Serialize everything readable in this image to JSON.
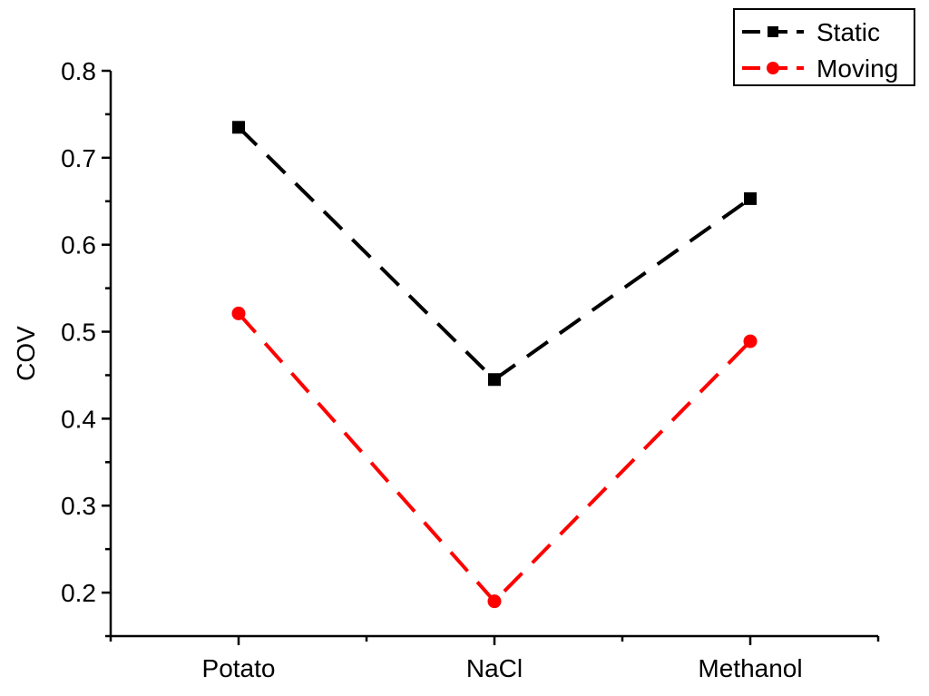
{
  "chart_data": {
    "type": "line",
    "categories": [
      "Potato",
      "NaCl",
      "Methanol"
    ],
    "series": [
      {
        "name": "Static",
        "values": [
          0.735,
          0.445,
          0.653
        ],
        "color": "#000000",
        "marker": "square",
        "line_style": "dashed"
      },
      {
        "name": "Moving",
        "values": [
          0.521,
          0.19,
          0.489
        ],
        "color": "#ff0000",
        "marker": "circle",
        "line_style": "dashed"
      }
    ],
    "title": "",
    "xlabel": "",
    "ylabel": "COV",
    "ylim": [
      0.15,
      0.8
    ],
    "yticks": [
      "0.2",
      "0.3",
      "0.4",
      "0.5",
      "0.6",
      "0.7",
      "0.8"
    ],
    "grid": false,
    "legend_position": "top-right"
  }
}
